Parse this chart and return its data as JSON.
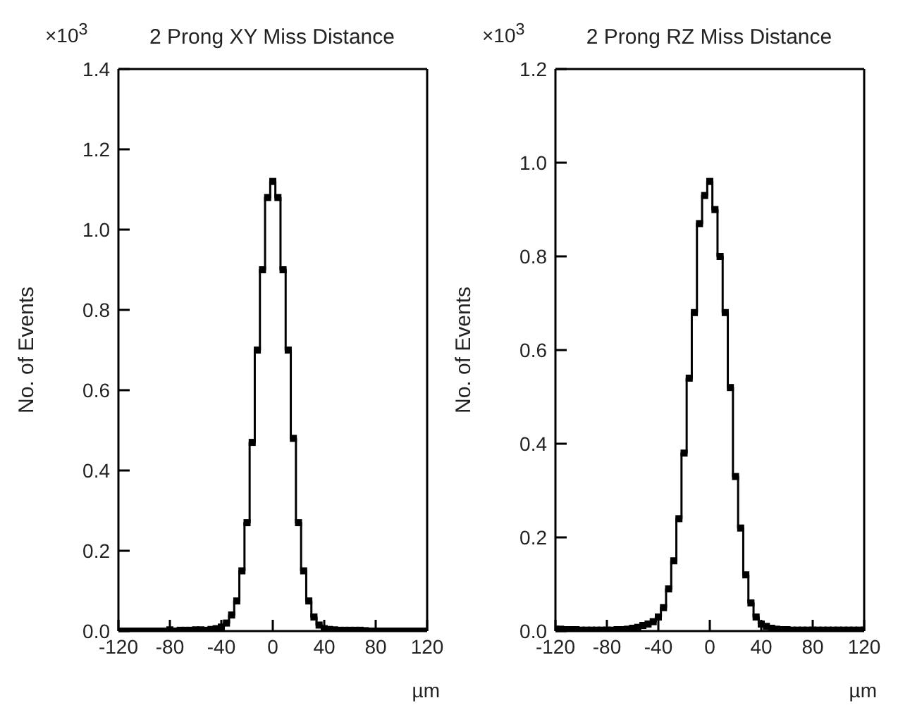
{
  "chart_data": [
    {
      "type": "step",
      "title": "2 Prong XY Miss Distance",
      "ylabel": "No. of Events",
      "xlabel": "µm",
      "annotations": [
        "×10$^{3}$"
      ],
      "marker": "square",
      "grid": false,
      "x": [
        -120,
        -116,
        -112,
        -108,
        -104,
        -100,
        -96,
        -92,
        -88,
        -84,
        -80,
        -76,
        -72,
        -68,
        -64,
        -60,
        -56,
        -52,
        -48,
        -44,
        -40,
        -36,
        -32,
        -28,
        -24,
        -20,
        -16,
        -12,
        -8,
        -4,
        0,
        4,
        8,
        12,
        16,
        20,
        24,
        28,
        32,
        36,
        40,
        44,
        48,
        52,
        56,
        60,
        64,
        68,
        72,
        76,
        80,
        84,
        88,
        92,
        96,
        100,
        104,
        108,
        112,
        116,
        120
      ],
      "series": [
        {
          "color": "#000000",
          "values": [
            0,
            0,
            0,
            0,
            0,
            0,
            0,
            0,
            0,
            0,
            0.003,
            0,
            0.002,
            0.002,
            0.002,
            0.003,
            0.003,
            0.002,
            0.004,
            0.006,
            0.01,
            0.02,
            0.04,
            0.075,
            0.15,
            0.27,
            0.47,
            0.7,
            0.9,
            1.08,
            1.12,
            1.08,
            0.9,
            0.7,
            0.48,
            0.27,
            0.15,
            0.075,
            0.035,
            0.015,
            0.006,
            0.004,
            0.003,
            0.002,
            0.002,
            0.002,
            0.002,
            0.002,
            0.001,
            0,
            0,
            0,
            0,
            0,
            0,
            0,
            0,
            0,
            0,
            0,
            0
          ]
        }
      ],
      "xlim": [
        -120,
        120
      ],
      "xticks": [
        -120,
        -80,
        -40,
        0,
        40,
        80,
        120
      ],
      "ylim": [
        0,
        1.4
      ],
      "yticks": [
        {
          "value": 0,
          "label": "0.0"
        },
        {
          "value": 0.2,
          "label": "0.2"
        },
        {
          "value": 0.4,
          "label": "0.4"
        },
        {
          "value": 0.6,
          "label": "0.6"
        },
        {
          "value": 0.8,
          "label": "0.8"
        },
        {
          "value": 1,
          "label": "1.0"
        },
        {
          "value": 1.2,
          "label": "1.2"
        },
        {
          "value": 1.4,
          "label": "1.4"
        }
      ]
    },
    {
      "type": "step",
      "title": "2 Prong RZ Miss Distance",
      "ylabel": "No. of Events",
      "xlabel": "µm",
      "annotations": [
        "×10$^{3}$"
      ],
      "marker": "square",
      "grid": false,
      "x": [
        -120,
        -116,
        -112,
        -108,
        -104,
        -100,
        -96,
        -92,
        -88,
        -84,
        -80,
        -76,
        -72,
        -68,
        -64,
        -60,
        -56,
        -52,
        -48,
        -44,
        -40,
        -36,
        -32,
        -28,
        -24,
        -20,
        -16,
        -12,
        -8,
        -4,
        0,
        4,
        8,
        12,
        16,
        20,
        24,
        28,
        32,
        36,
        40,
        44,
        48,
        52,
        56,
        60,
        64,
        68,
        72,
        76,
        80,
        84,
        88,
        92,
        96,
        100,
        104,
        108,
        112,
        116,
        120
      ],
      "series": [
        {
          "color": "#000000",
          "values": [
            0.004,
            0.004,
            0.003,
            0.003,
            0.003,
            0.002,
            0.002,
            0.002,
            0.002,
            0.002,
            0.002,
            0.002,
            0.003,
            0.003,
            0.004,
            0.006,
            0.008,
            0.012,
            0.015,
            0.02,
            0.03,
            0.05,
            0.09,
            0.15,
            0.24,
            0.38,
            0.54,
            0.68,
            0.87,
            0.93,
            0.96,
            0.9,
            0.8,
            0.68,
            0.52,
            0.33,
            0.22,
            0.12,
            0.06,
            0.03,
            0.015,
            0.01,
            0.006,
            0.004,
            0.003,
            0.003,
            0.002,
            0.002,
            0.002,
            0.002,
            0.002,
            0.002,
            0.002,
            0.002,
            0.002,
            0.002,
            0.002,
            0.002,
            0.002,
            0.002,
            0.002
          ]
        }
      ],
      "xlim": [
        -120,
        120
      ],
      "xticks": [
        -120,
        -80,
        -40,
        0,
        40,
        80,
        120
      ],
      "ylim": [
        0,
        1.2
      ],
      "yticks": [
        {
          "value": 0,
          "label": "0.0"
        },
        {
          "value": 0.2,
          "label": "0.2"
        },
        {
          "value": 0.4,
          "label": "0.4"
        },
        {
          "value": 0.6,
          "label": "0.6"
        },
        {
          "value": 0.8,
          "label": "0.8"
        },
        {
          "value": 1,
          "label": "1.0"
        },
        {
          "value": 1.2,
          "label": "1.2"
        }
      ]
    }
  ]
}
